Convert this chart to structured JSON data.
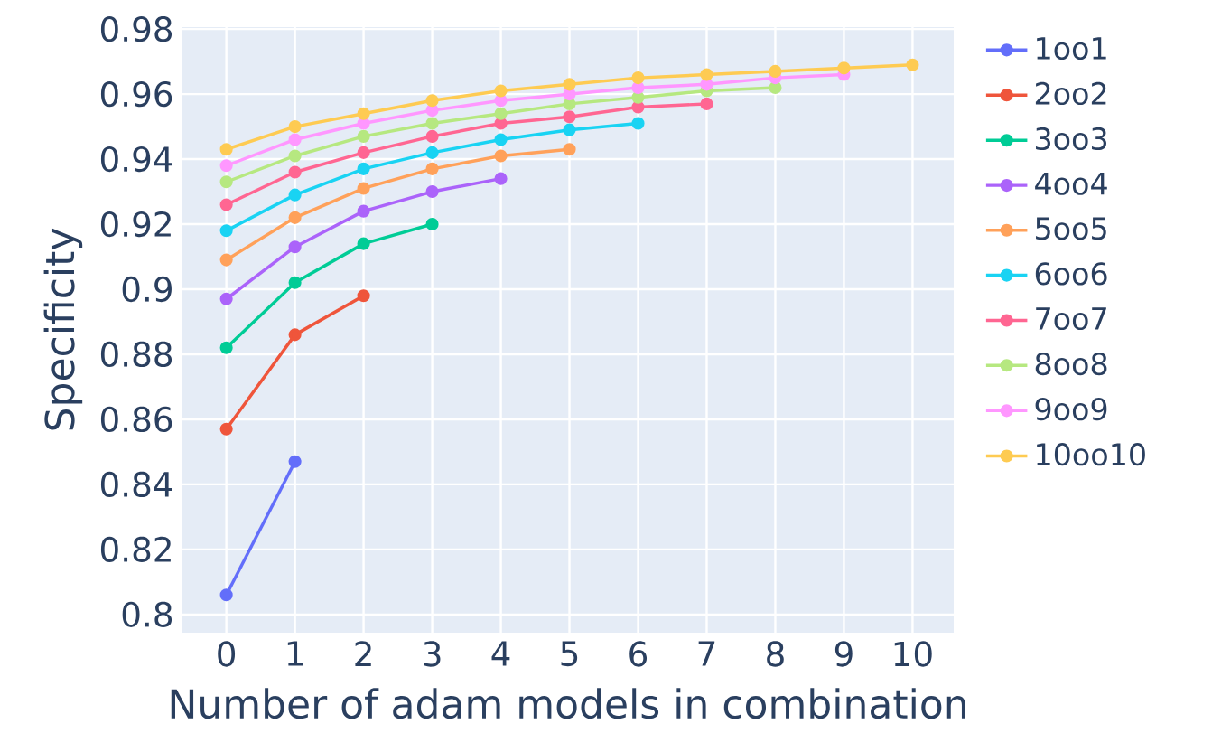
{
  "chart_data": {
    "type": "line",
    "xlabel": "Number of adam models in combination",
    "ylabel": "Specificity",
    "xlim": [
      -0.64,
      10.6
    ],
    "ylim": [
      0.7944,
      0.9806
    ],
    "xticks": [
      0,
      1,
      2,
      3,
      4,
      5,
      6,
      7,
      8,
      9,
      10
    ],
    "yticks": [
      0.8,
      0.82,
      0.84,
      0.86,
      0.88,
      0.9,
      0.92,
      0.94,
      0.96,
      0.98
    ],
    "grid": true,
    "legend": "right",
    "marker": "circle",
    "line_style": "solid",
    "series": [
      {
        "name": "1oo1",
        "color": "#636efa",
        "x": [
          0,
          1
        ],
        "values": [
          0.806,
          0.847
        ]
      },
      {
        "name": "2oo2",
        "color": "#ef553b",
        "x": [
          0,
          1,
          2
        ],
        "values": [
          0.857,
          0.886,
          0.898
        ]
      },
      {
        "name": "3oo3",
        "color": "#00cc96",
        "x": [
          0,
          1,
          2,
          3
        ],
        "values": [
          0.882,
          0.902,
          0.914,
          0.92
        ]
      },
      {
        "name": "4oo4",
        "color": "#ab63fa",
        "x": [
          0,
          1,
          2,
          3,
          4
        ],
        "values": [
          0.897,
          0.913,
          0.924,
          0.93,
          0.934
        ]
      },
      {
        "name": "5oo5",
        "color": "#ffa15a",
        "x": [
          0,
          1,
          2,
          3,
          4,
          5
        ],
        "values": [
          0.909,
          0.922,
          0.931,
          0.937,
          0.941,
          0.943
        ]
      },
      {
        "name": "6oo6",
        "color": "#19d3f3",
        "x": [
          0,
          1,
          2,
          3,
          4,
          5,
          6
        ],
        "values": [
          0.918,
          0.929,
          0.937,
          0.942,
          0.946,
          0.949,
          0.951
        ]
      },
      {
        "name": "7oo7",
        "color": "#ff6692",
        "x": [
          0,
          1,
          2,
          3,
          4,
          5,
          6,
          7
        ],
        "values": [
          0.926,
          0.936,
          0.942,
          0.947,
          0.951,
          0.953,
          0.956,
          0.957
        ]
      },
      {
        "name": "8oo8",
        "color": "#b6e880",
        "x": [
          0,
          1,
          2,
          3,
          4,
          5,
          6,
          7,
          8
        ],
        "values": [
          0.933,
          0.941,
          0.947,
          0.951,
          0.954,
          0.957,
          0.959,
          0.961,
          0.962
        ]
      },
      {
        "name": "9oo9",
        "color": "#ff97ff",
        "x": [
          0,
          1,
          2,
          3,
          4,
          5,
          6,
          7,
          8,
          9
        ],
        "values": [
          0.938,
          0.946,
          0.951,
          0.955,
          0.958,
          0.96,
          0.962,
          0.963,
          0.965,
          0.966
        ]
      },
      {
        "name": "10oo10",
        "color": "#fecb52",
        "x": [
          0,
          1,
          2,
          3,
          4,
          5,
          6,
          7,
          8,
          9,
          10
        ],
        "values": [
          0.943,
          0.95,
          0.954,
          0.958,
          0.961,
          0.963,
          0.965,
          0.966,
          0.967,
          0.968,
          0.969
        ]
      }
    ]
  }
}
